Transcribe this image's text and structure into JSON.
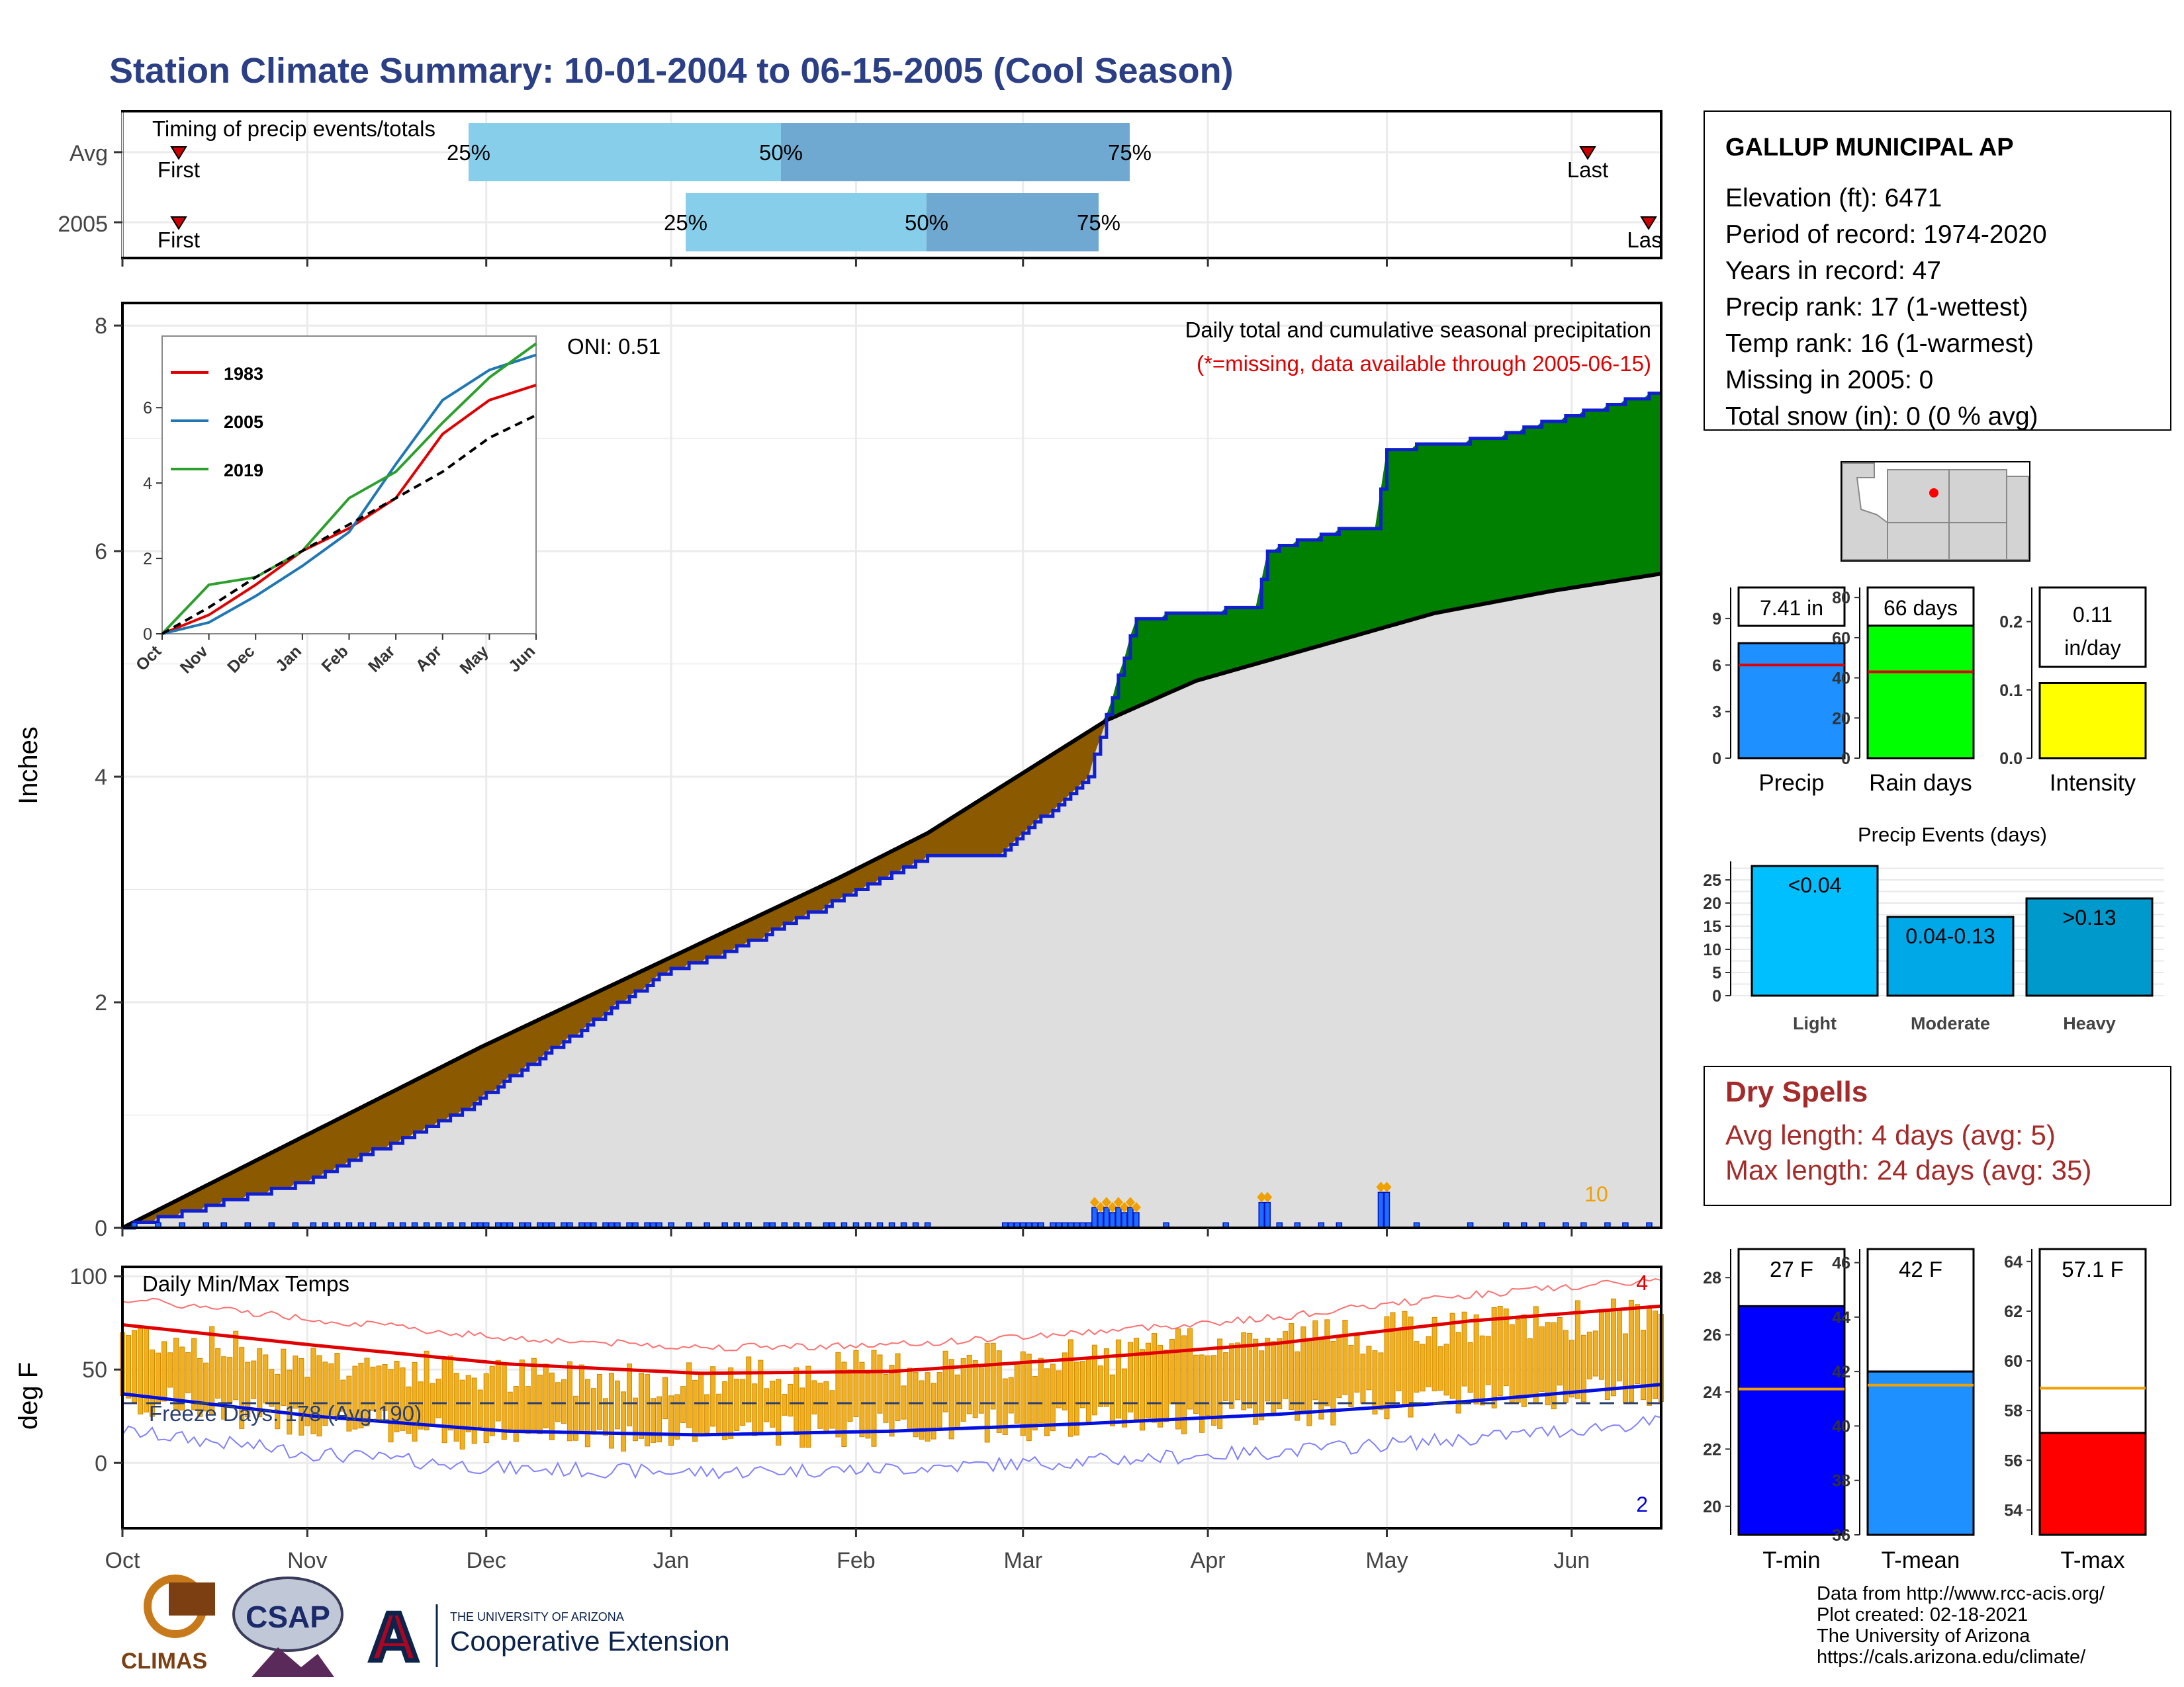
{
  "title": "Station Climate Summary: 10-01-2004 to 06-15-2005 (Cool Season)",
  "colors": {
    "title": "#2b3f86",
    "brown": "#8b5a00",
    "green": "#008000",
    "gray_fill": "#dedede",
    "blue_line": "#1020d0",
    "orange": "#f0a000",
    "red": "#e00000",
    "dry_red": "#a52a2a",
    "light_blue": "#87ceeb",
    "mid_blue": "#6fa8d0"
  },
  "timing": {
    "label": "Timing of precip events/totals",
    "rows": [
      {
        "name": "Avg",
        "first": "First",
        "last": "Last",
        "p25": "25%",
        "p50": "50%",
        "p75": "75%"
      },
      {
        "name": "2005",
        "first": "First",
        "last": "Las",
        "p25": "25%",
        "p50": "50%",
        "p75": "75%"
      }
    ]
  },
  "month_labels": [
    "Oct",
    "Nov",
    "Dec",
    "Jan",
    "Feb",
    "Mar",
    "Apr",
    "May",
    "Jun"
  ],
  "main_panel": {
    "ylabel": "Inches",
    "y_ticks": [
      "0",
      "2",
      "4",
      "6",
      "8"
    ],
    "oni": "ONI: 0.51",
    "caption": "Daily total and cumulative seasonal precipitation",
    "missing_note": "(*=missing, data available through 2005-06-15)",
    "bar_note": "10"
  },
  "inset": {
    "y_ticks": [
      "0",
      "2",
      "4",
      "6"
    ],
    "x_ticks": [
      "Oct",
      "Nov",
      "Dec",
      "Jan",
      "Feb",
      "Mar",
      "Apr",
      "May",
      "Jun"
    ],
    "legend": [
      "1983",
      "2005",
      "2019"
    ],
    "legend_colors": [
      "#e00000",
      "#1f77b4",
      "#2ca02c"
    ]
  },
  "temp_panel": {
    "ylabel": "deg F",
    "y_ticks": [
      "0",
      "50",
      "100"
    ],
    "label": "Daily Min/Max Temps",
    "freeze_text": "Freeze Days: 178 (Avg:190)",
    "max_note": "4",
    "min_note": "2"
  },
  "station": {
    "name": "GALLUP MUNICIPAL AP",
    "lines": [
      "Elevation (ft): 6471",
      "Period of record: 1974-2020",
      "Years in record: 47",
      "Precip rank: 17 (1-wettest)",
      "Temp rank: 16 (1-warmest)",
      "Missing in 2005: 0",
      "Total snow (in): 0 (0 % avg)"
    ]
  },
  "summary_bars": [
    {
      "label": "Precip",
      "value_label": "7.41 in",
      "value": 7.41,
      "avg": 6.0,
      "max": 11,
      "ticks": [
        "0",
        "3",
        "6",
        "9"
      ],
      "color": "#1e90ff"
    },
    {
      "label": "Rain days",
      "value_label": "66 days",
      "value": 66,
      "avg": 43,
      "max": 85,
      "ticks": [
        "0",
        "20",
        "40",
        "60",
        "80"
      ],
      "color": "#00ff00"
    },
    {
      "label": "Intensity",
      "value_label": "0.11 in/day",
      "value": 0.11,
      "avg": 0.135,
      "max": 0.25,
      "ticks": [
        "0.0",
        "0.1",
        "0.2"
      ],
      "color": "#ffff00"
    }
  ],
  "events": {
    "title": "Precip Events (days)",
    "ticks": [
      "0",
      "5",
      "10",
      "15",
      "20",
      "25"
    ],
    "bars": [
      {
        "label": "Light",
        "range": "<0.04",
        "value": 28,
        "color": "#00bfff"
      },
      {
        "label": "Moderate",
        "range": "0.04-0.13",
        "value": 17,
        "color": "#00a8e8"
      },
      {
        "label": "Heavy",
        "range": ">0.13",
        "value": 21,
        "color": "#0099cc"
      }
    ]
  },
  "dry_spells": {
    "title": "Dry Spells",
    "avg_line": "Avg length: 4 days (avg: 5)",
    "max_line": "Max length: 24 days (avg: 35)"
  },
  "temp_bars": [
    {
      "label": "T-min",
      "value_label": "27 F",
      "value": 27,
      "avg": 24.1,
      "ymin": 19,
      "ymax": 29,
      "ticks": [
        "20",
        "22",
        "24",
        "26",
        "28"
      ],
      "color": "#0000ff"
    },
    {
      "label": "T-mean",
      "value_label": "42 F",
      "value": 42,
      "avg": 41.5,
      "ymin": 36,
      "ymax": 46.5,
      "ticks": [
        "36",
        "38",
        "40",
        "42",
        "44",
        "46"
      ],
      "color": "#1e90ff"
    },
    {
      "label": "T-max",
      "value_label": "57.1 F",
      "value": 57.1,
      "avg": 58.9,
      "ymin": 53,
      "ymax": 64.5,
      "ticks": [
        "54",
        "56",
        "58",
        "60",
        "62",
        "64"
      ],
      "color": "#ff0000"
    }
  ],
  "footer": {
    "logos": [
      "CLIMAS",
      "CSAP",
      "A"
    ],
    "ua_small": "THE UNIVERSITY OF ARIZONA",
    "ua_big": "Cooperative Extension",
    "credits": [
      "Data from http://www.rcc-acis.org/",
      "Plot created: 02-18-2021",
      "The University of Arizona",
      "https://cals.arizona.edu/climate/"
    ]
  },
  "chart_data": [
    {
      "type": "area",
      "title": "Daily total and cumulative seasonal precipitation",
      "ylabel": "Inches",
      "ylim": [
        0,
        8.2
      ],
      "x_unit": "day of season from Oct 1",
      "series": [
        {
          "name": "",
          "x": [
            0,
            30,
            56,
            92,
            100,
            120,
            135,
            147,
            162,
            170,
            190,
            192,
            205,
            210,
            212,
            230,
            236,
            243,
            250,
            258
          ],
          "values": [
            0,
            0.4,
            1.0,
            2.3,
            2.4,
            2.9,
            3.3,
            3.3,
            4.0,
            5.4,
            5.5,
            6.0,
            6.2,
            6.2,
            6.9,
            7.0,
            7.1,
            7.2,
            7.3,
            7.41
          ]
        },
        {
          "name": "",
          "x": [
            0,
            30,
            60,
            92,
            120,
            135,
            150,
            165,
            180,
            200,
            220,
            240,
            258
          ],
          "values": [
            0,
            0.8,
            1.6,
            2.4,
            3.1,
            3.5,
            4.0,
            4.5,
            4.85,
            5.15,
            5.45,
            5.65,
            5.8
          ]
        }
      ]
    },
    {
      "type": "line",
      "title": "",
      "x": [
        "Oct",
        "Nov",
        "Dec",
        "Jan",
        "Feb",
        "Mar",
        "Apr",
        "May",
        "Jun"
      ],
      "ylim": [
        0,
        7.8
      ],
      "series": [
        {
          "name": "1983",
          "values": [
            0,
            0.5,
            1.3,
            2.2,
            2.8,
            3.6,
            5.3,
            6.2,
            6.6
          ]
        },
        {
          "name": "2005",
          "values": [
            0,
            0.3,
            1.0,
            1.8,
            2.7,
            4.5,
            6.2,
            7.0,
            7.4
          ]
        },
        {
          "name": "2019",
          "values": [
            0,
            1.3,
            1.5,
            2.2,
            3.6,
            4.3,
            5.6,
            6.8,
            7.7
          ]
        },
        {
          "name": "",
          "values": [
            0,
            0.7,
            1.5,
            2.2,
            2.9,
            3.6,
            4.3,
            5.2,
            5.8
          ]
        }
      ]
    },
    {
      "type": "line",
      "title": "Daily Min/Max Temps",
      "ylabel": "deg F",
      "ylim": [
        -35,
        105
      ],
      "x": [
        "Oct",
        "Nov",
        "Dec",
        "Jan",
        "Feb",
        "Mar",
        "Apr",
        "May",
        "Jun"
      ],
      "series": [
        {
          "values": [
            74,
            63,
            53,
            48,
            49,
            56,
            64,
            76,
            84
          ]
        },
        {
          "values": [
            37,
            25,
            17,
            15,
            17,
            21,
            26,
            33,
            42
          ]
        },
        {
          "values": [
            70,
            55,
            46,
            45,
            51,
            56,
            67,
            72,
            80
          ]
        },
        {
          "values": [
            35,
            22,
            14,
            16,
            18,
            22,
            26,
            36,
            40
          ]
        }
      ],
      "freeze_line": 32
    },
    {
      "type": "bar",
      "title": "Precip Events (days)",
      "categories": [
        "Light",
        "Moderate",
        "Heavy"
      ],
      "values": [
        28,
        17,
        21
      ]
    }
  ]
}
